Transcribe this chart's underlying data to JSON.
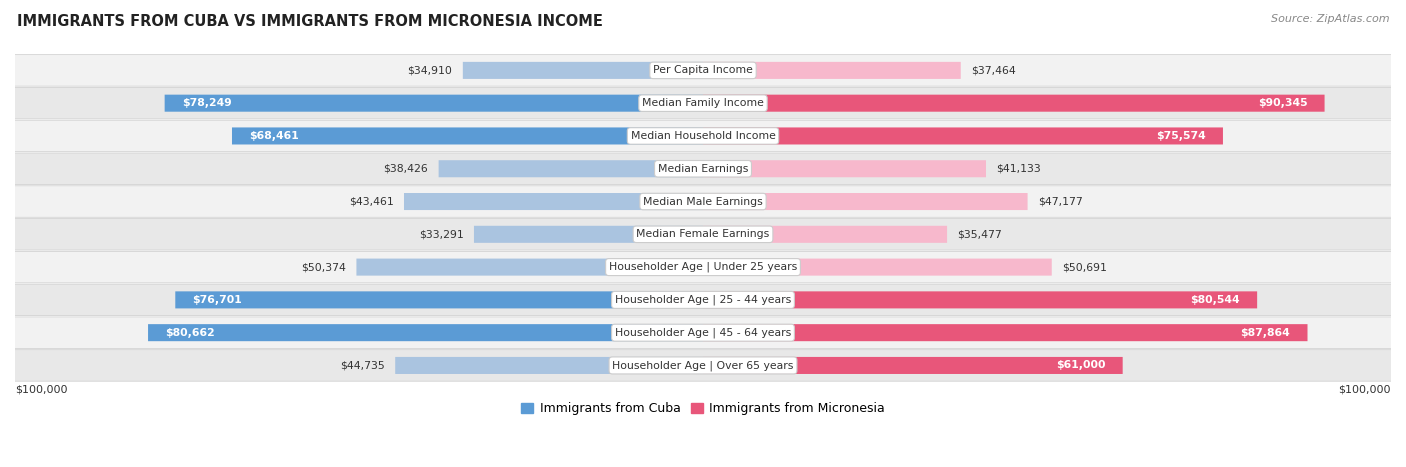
{
  "title": "IMMIGRANTS FROM CUBA VS IMMIGRANTS FROM MICRONESIA INCOME",
  "source": "Source: ZipAtlas.com",
  "categories": [
    "Per Capita Income",
    "Median Family Income",
    "Median Household Income",
    "Median Earnings",
    "Median Male Earnings",
    "Median Female Earnings",
    "Householder Age | Under 25 years",
    "Householder Age | 25 - 44 years",
    "Householder Age | 45 - 64 years",
    "Householder Age | Over 65 years"
  ],
  "cuba_values": [
    34910,
    78249,
    68461,
    38426,
    43461,
    33291,
    50374,
    76701,
    80662,
    44735
  ],
  "micronesia_values": [
    37464,
    90345,
    75574,
    41133,
    47177,
    35477,
    50691,
    80544,
    87864,
    61000
  ],
  "cuba_labels": [
    "$34,910",
    "$78,249",
    "$68,461",
    "$38,426",
    "$43,461",
    "$33,291",
    "$50,374",
    "$76,701",
    "$80,662",
    "$44,735"
  ],
  "micronesia_labels": [
    "$37,464",
    "$90,345",
    "$75,574",
    "$41,133",
    "$47,177",
    "$35,477",
    "$50,691",
    "$80,544",
    "$87,864",
    "$61,000"
  ],
  "max_value": 100000,
  "cuba_color_light": "#aac4e0",
  "cuba_color_dark": "#5b9bd5",
  "micronesia_color_light": "#f7b8cc",
  "micronesia_color_dark": "#e8567a",
  "bar_height": 0.52,
  "row_bg_light": "#f2f2f2",
  "row_bg_dark": "#e8e8e8",
  "background_color": "#ffffff",
  "text_dark": "#333333",
  "text_gray": "#777777",
  "legend_cuba": "Immigrants from Cuba",
  "legend_micronesia": "Immigrants from Micronesia",
  "axis_label_left": "$100,000",
  "axis_label_right": "$100,000",
  "inside_label_threshold": 55000
}
